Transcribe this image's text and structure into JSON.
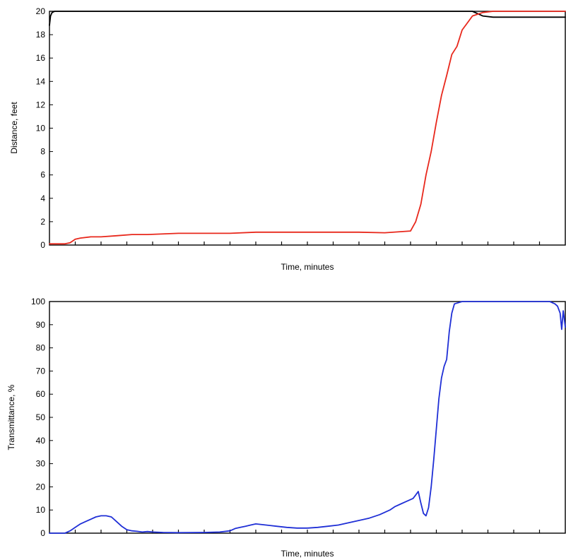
{
  "chart_data": [
    {
      "type": "line",
      "title": "",
      "xlabel": "Time, minutes",
      "ylabel": "Distance, feet",
      "ylim": [
        0,
        20
      ],
      "yticks": [
        0,
        2,
        4,
        6,
        8,
        10,
        12,
        14,
        16,
        18,
        20
      ],
      "xlim": [
        0,
        100
      ],
      "x_tick_count": 19,
      "grid": false,
      "legend": "none",
      "series": [
        {
          "color": "#000000",
          "x": [
            0,
            0.2,
            0.5,
            1,
            5,
            50,
            80,
            82,
            84,
            86,
            100
          ],
          "y": [
            18.8,
            19.6,
            19.9,
            20,
            20,
            20,
            20,
            20,
            19.6,
            19.5,
            19.5
          ]
        },
        {
          "color": "#e8281c",
          "x": [
            0,
            3,
            4,
            5,
            6,
            8,
            10,
            13,
            16,
            19,
            25,
            35,
            40,
            50,
            60,
            65,
            70,
            71,
            72,
            73,
            74,
            75,
            76,
            77,
            78,
            79,
            80,
            81,
            82,
            84,
            86,
            100
          ],
          "y": [
            0.1,
            0.1,
            0.2,
            0.5,
            0.6,
            0.7,
            0.7,
            0.8,
            0.9,
            0.9,
            1.0,
            1.0,
            1.1,
            1.1,
            1.1,
            1.05,
            1.2,
            2.0,
            3.5,
            6.0,
            8.0,
            10.5,
            12.8,
            14.5,
            16.3,
            17.0,
            18.4,
            19.0,
            19.6,
            19.9,
            20.0,
            20.0
          ]
        }
      ]
    },
    {
      "type": "line",
      "title": "",
      "xlabel": "Time, minutes",
      "ylabel": "Transmittance, %",
      "ylim": [
        0,
        100
      ],
      "yticks": [
        0,
        10,
        20,
        30,
        40,
        50,
        60,
        70,
        80,
        90,
        100
      ],
      "xlim": [
        0,
        100
      ],
      "x_tick_count": 19,
      "grid": false,
      "legend": "none",
      "series": [
        {
          "color": "#1f2fd6",
          "x": [
            0,
            3,
            4,
            5,
            6,
            7,
            8,
            9,
            10,
            11,
            12,
            13,
            14,
            15,
            16,
            17,
            18,
            19,
            20,
            22,
            25,
            30,
            33,
            35,
            36,
            37,
            38,
            39,
            40,
            42,
            44,
            46,
            48,
            50,
            52,
            54,
            56,
            58,
            60,
            62,
            64,
            66,
            67,
            68,
            69,
            70,
            70.5,
            71,
            71.5,
            72,
            72.5,
            73,
            73.5,
            74,
            74.5,
            75,
            75.5,
            76,
            76.5,
            77,
            77.5,
            78,
            78.5,
            80,
            82,
            84,
            86,
            88,
            90,
            92,
            95,
            96,
            97,
            98,
            98.5,
            99,
            99.3,
            99.6,
            100
          ],
          "y": [
            0,
            0,
            1,
            2.5,
            4,
            5,
            6,
            7,
            7.5,
            7.5,
            7,
            5,
            3,
            1.5,
            1,
            0.8,
            0.5,
            0.7,
            0.5,
            0.3,
            0.2,
            0.3,
            0.5,
            1,
            2,
            2.5,
            3,
            3.5,
            4,
            3.5,
            3,
            2.5,
            2.2,
            2.2,
            2.5,
            3,
            3.5,
            4.5,
            5.5,
            6.5,
            8,
            10,
            11.5,
            12.5,
            13.5,
            14.5,
            15,
            16.5,
            18,
            13,
            8.5,
            7.5,
            11,
            20,
            32,
            45,
            58,
            67,
            72,
            75,
            87,
            95,
            99,
            100,
            100,
            100,
            100,
            100,
            100,
            100,
            100,
            100,
            100,
            99,
            98,
            95,
            88,
            96,
            89
          ]
        }
      ]
    }
  ]
}
